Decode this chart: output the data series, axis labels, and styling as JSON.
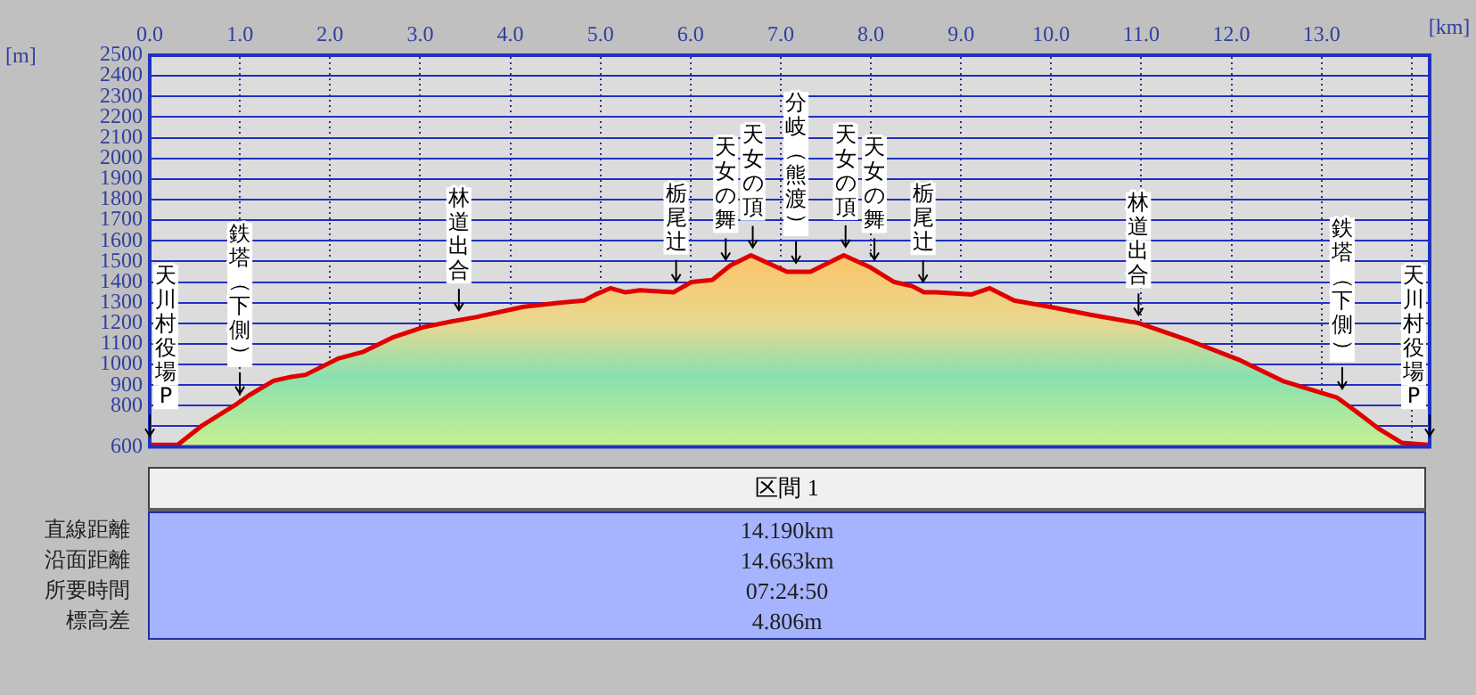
{
  "chart_data": {
    "type": "area",
    "xlabel": "[km]",
    "ylabel": "[m]",
    "x": [
      0,
      0.31,
      0.57,
      0.97,
      1.1,
      1.37,
      1.57,
      1.73,
      2.1,
      2.36,
      2.69,
      3.03,
      3.36,
      3.62,
      4.15,
      4.55,
      4.82,
      4.95,
      5.11,
      5.28,
      5.44,
      5.81,
      6.01,
      6.24,
      6.44,
      6.67,
      7.07,
      7.33,
      7.7,
      8.0,
      8.26,
      8.46,
      8.59,
      8.72,
      9.12,
      9.32,
      9.59,
      9.98,
      10.45,
      10.98,
      11.51,
      12.1,
      12.57,
      13.17,
      13.36,
      13.63,
      13.89,
      14.19
    ],
    "series": [
      {
        "color": "#e00000",
        "values": [
          610,
          610,
          700,
          810,
          850,
          920,
          940,
          950,
          1030,
          1060,
          1130,
          1180,
          1210,
          1230,
          1280,
          1300,
          1310,
          1340,
          1370,
          1350,
          1360,
          1350,
          1400,
          1410,
          1480,
          1530,
          1450,
          1450,
          1530,
          1470,
          1400,
          1380,
          1350,
          1350,
          1340,
          1370,
          1310,
          1280,
          1240,
          1200,
          1120,
          1020,
          920,
          840,
          780,
          690,
          620,
          610
        ]
      }
    ],
    "xlim": [
      0,
      14.2
    ],
    "xticks": [
      {
        "value": 0,
        "label": "0.0"
      },
      {
        "value": 1,
        "label": "1.0"
      },
      {
        "value": 2,
        "label": "2.0"
      },
      {
        "value": 3,
        "label": "3.0"
      },
      {
        "value": 4,
        "label": "4.0"
      },
      {
        "value": 5,
        "label": "5.0"
      },
      {
        "value": 6,
        "label": "6.0"
      },
      {
        "value": 7,
        "label": "7.0"
      },
      {
        "value": 8,
        "label": "8.0"
      },
      {
        "value": 9,
        "label": "9.0"
      },
      {
        "value": 10,
        "label": "10.0"
      },
      {
        "value": 11,
        "label": "11.0"
      },
      {
        "value": 12,
        "label": "12.0"
      },
      {
        "value": 13,
        "label": "13.0"
      },
      {
        "value": 14,
        "label": null
      }
    ],
    "ylim": [
      600,
      2500
    ],
    "yticks": [
      600,
      {
        "value": 700,
        "label": null
      },
      800,
      900,
      1000,
      1100,
      1200,
      1300,
      1400,
      1500,
      1600,
      1700,
      1800,
      1900,
      2000,
      2100,
      2200,
      2300,
      2400,
      2500
    ],
    "grid": true,
    "legend": false,
    "marker": "none",
    "line_style": "solid",
    "annotations": [
      {
        "text": "天川村役場P",
        "x": 0,
        "y": 610
      },
      {
        "text": "鉄塔（下側）",
        "x": 1.0,
        "y": 815
      },
      {
        "text": "林道出合",
        "x": 3.43,
        "y": 1220
      },
      {
        "text": "栃尾辻",
        "x": 5.84,
        "y": 1360
      },
      {
        "text": "天女の舞",
        "x": 6.39,
        "y": 1465
      },
      {
        "text": "天女の頂",
        "x": 6.69,
        "y": 1525
      },
      {
        "text": "分岐（熊渡）",
        "x": 7.17,
        "y": 1450
      },
      {
        "text": "天女の頂",
        "x": 7.72,
        "y": 1528
      },
      {
        "text": "天女の舞",
        "x": 8.04,
        "y": 1465
      },
      {
        "text": "栃尾辻",
        "x": 8.58,
        "y": 1358
      },
      {
        "text": "林道出合",
        "x": 10.97,
        "y": 1197
      },
      {
        "text": "鉄塔（下側）",
        "x": 13.23,
        "y": 840
      },
      {
        "text": "天川村役場P",
        "x": 14.2,
        "y": 610
      },
      "区間 1",
      "直線距離",
      "14.190km",
      "沿面距離",
      "14.663km",
      "所要時間",
      "07:24:50",
      "標高差",
      "4.806m"
    ]
  }
}
